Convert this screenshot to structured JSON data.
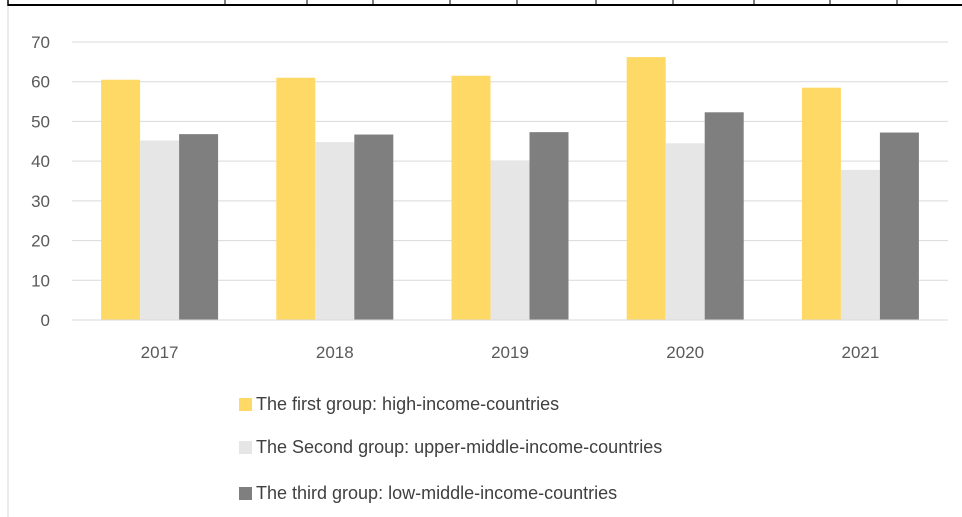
{
  "chart_data": {
    "type": "bar",
    "categories": [
      "2017",
      "2018",
      "2019",
      "2020",
      "2021"
    ],
    "series": [
      {
        "name": "The first group: high-income-countries",
        "color": "#FFD966",
        "values": [
          60.5,
          61.0,
          61.5,
          66.2,
          58.5
        ]
      },
      {
        "name": "The Second group: upper-middle-income-countries",
        "color": "#E7E6E6",
        "values": [
          45.2,
          44.8,
          40.2,
          44.5,
          37.8
        ]
      },
      {
        "name": "The third group: low-middle-income-countries",
        "color": "#7F7F7F",
        "values": [
          46.8,
          46.7,
          47.3,
          52.3,
          47.2
        ]
      }
    ],
    "ylim": [
      0,
      70
    ],
    "yticks": [
      0,
      10,
      20,
      30,
      40,
      50,
      60,
      70
    ],
    "grid": true,
    "legend_position": "bottom",
    "title": "",
    "xlabel": "",
    "ylabel": ""
  }
}
